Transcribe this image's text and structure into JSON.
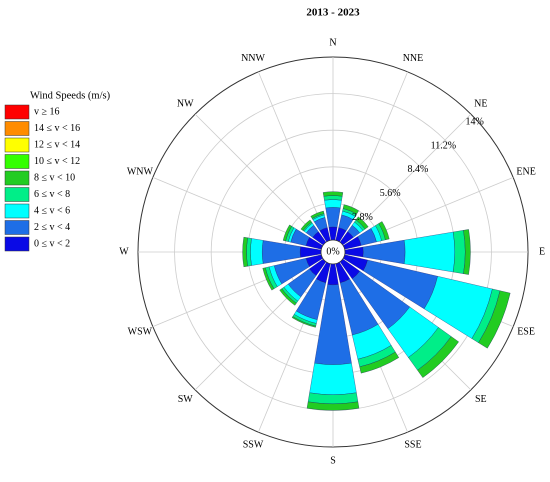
{
  "chart_data": {
    "type": "windrose",
    "title": "2013 - 2023",
    "legend_title": "Wind Speeds (m/s)",
    "categories": [
      "N",
      "NNE",
      "NE",
      "ENE",
      "E",
      "ESE",
      "SE",
      "SSE",
      "S",
      "SSW",
      "SW",
      "WSW",
      "W",
      "WNW",
      "NW",
      "NNW"
    ],
    "series": [
      {
        "name": "v ≥ 16",
        "color": "#ff0000",
        "values": [
          0,
          0,
          0,
          0,
          0,
          0,
          0,
          0,
          0,
          0,
          0,
          0,
          0,
          0,
          0,
          0
        ]
      },
      {
        "name": "14 ≤ v < 16",
        "color": "#ff8c00",
        "values": [
          0,
          0,
          0,
          0,
          0,
          0,
          0,
          0,
          0,
          0,
          0,
          0,
          0,
          0,
          0,
          0
        ]
      },
      {
        "name": "12 ≤ v < 14",
        "color": "#ffff00",
        "values": [
          0,
          0,
          0,
          0,
          0,
          0,
          0,
          0,
          0,
          0,
          0,
          0,
          0,
          0,
          0,
          0
        ]
      },
      {
        "name": "10 ≤ v < 12",
        "color": "#33ff00",
        "values": [
          0,
          0,
          0,
          0,
          0,
          0,
          0,
          0,
          0,
          0,
          0,
          0,
          0,
          0,
          0,
          0
        ]
      },
      {
        "name": "8 ≤ v < 10",
        "color": "#22cc22",
        "values": [
          0.3,
          0.3,
          0.3,
          0.3,
          0.4,
          0.8,
          0.7,
          0.5,
          0.5,
          0.1,
          0.2,
          0.2,
          0.3,
          0.2,
          0.2,
          0.2
        ]
      },
      {
        "name": "6 ≤ v < 8",
        "color": "#00ee88",
        "values": [
          0.3,
          0.2,
          0.2,
          0.3,
          0.8,
          0.6,
          1.2,
          0.6,
          0.7,
          0.2,
          0.2,
          0.3,
          0.3,
          0.2,
          0.1,
          0.1
        ]
      },
      {
        "name": "4 ≤ v < 6",
        "color": "#00ffff",
        "values": [
          0.6,
          0.3,
          0.3,
          0.4,
          3.8,
          4.3,
          2.7,
          1.9,
          2.3,
          0.3,
          0.4,
          0.4,
          0.9,
          0.2,
          0.2,
          0.2
        ]
      },
      {
        "name": "2 ≤ v < 4",
        "color": "#1e6ee6",
        "values": [
          1.5,
          1.0,
          0.6,
          1.2,
          3.2,
          5.5,
          4.7,
          4.1,
          6.1,
          2.9,
          2.0,
          2.5,
          2.9,
          1.2,
          0.6,
          0.8
        ]
      },
      {
        "name": "0 ≤ v < 2",
        "color": "#0a0ae6",
        "values": [
          1.0,
          1.0,
          1.0,
          1.3,
          1.4,
          1.8,
          1.6,
          1.5,
          1.6,
          1.5,
          1.3,
          1.2,
          1.6,
          1.2,
          1.0,
          1.0
        ]
      }
    ],
    "rlim": [
      0,
      14
    ],
    "rticks": [
      {
        "value": 0,
        "label": "0%"
      },
      {
        "value": 2.8,
        "label": "2.8%"
      },
      {
        "value": 5.6,
        "label": "5.6%"
      },
      {
        "value": 8.4,
        "label": "8.4%"
      },
      {
        "value": 11.2,
        "label": "11.2%"
      },
      {
        "value": 14,
        "label": "14%"
      }
    ],
    "grid": true
  }
}
